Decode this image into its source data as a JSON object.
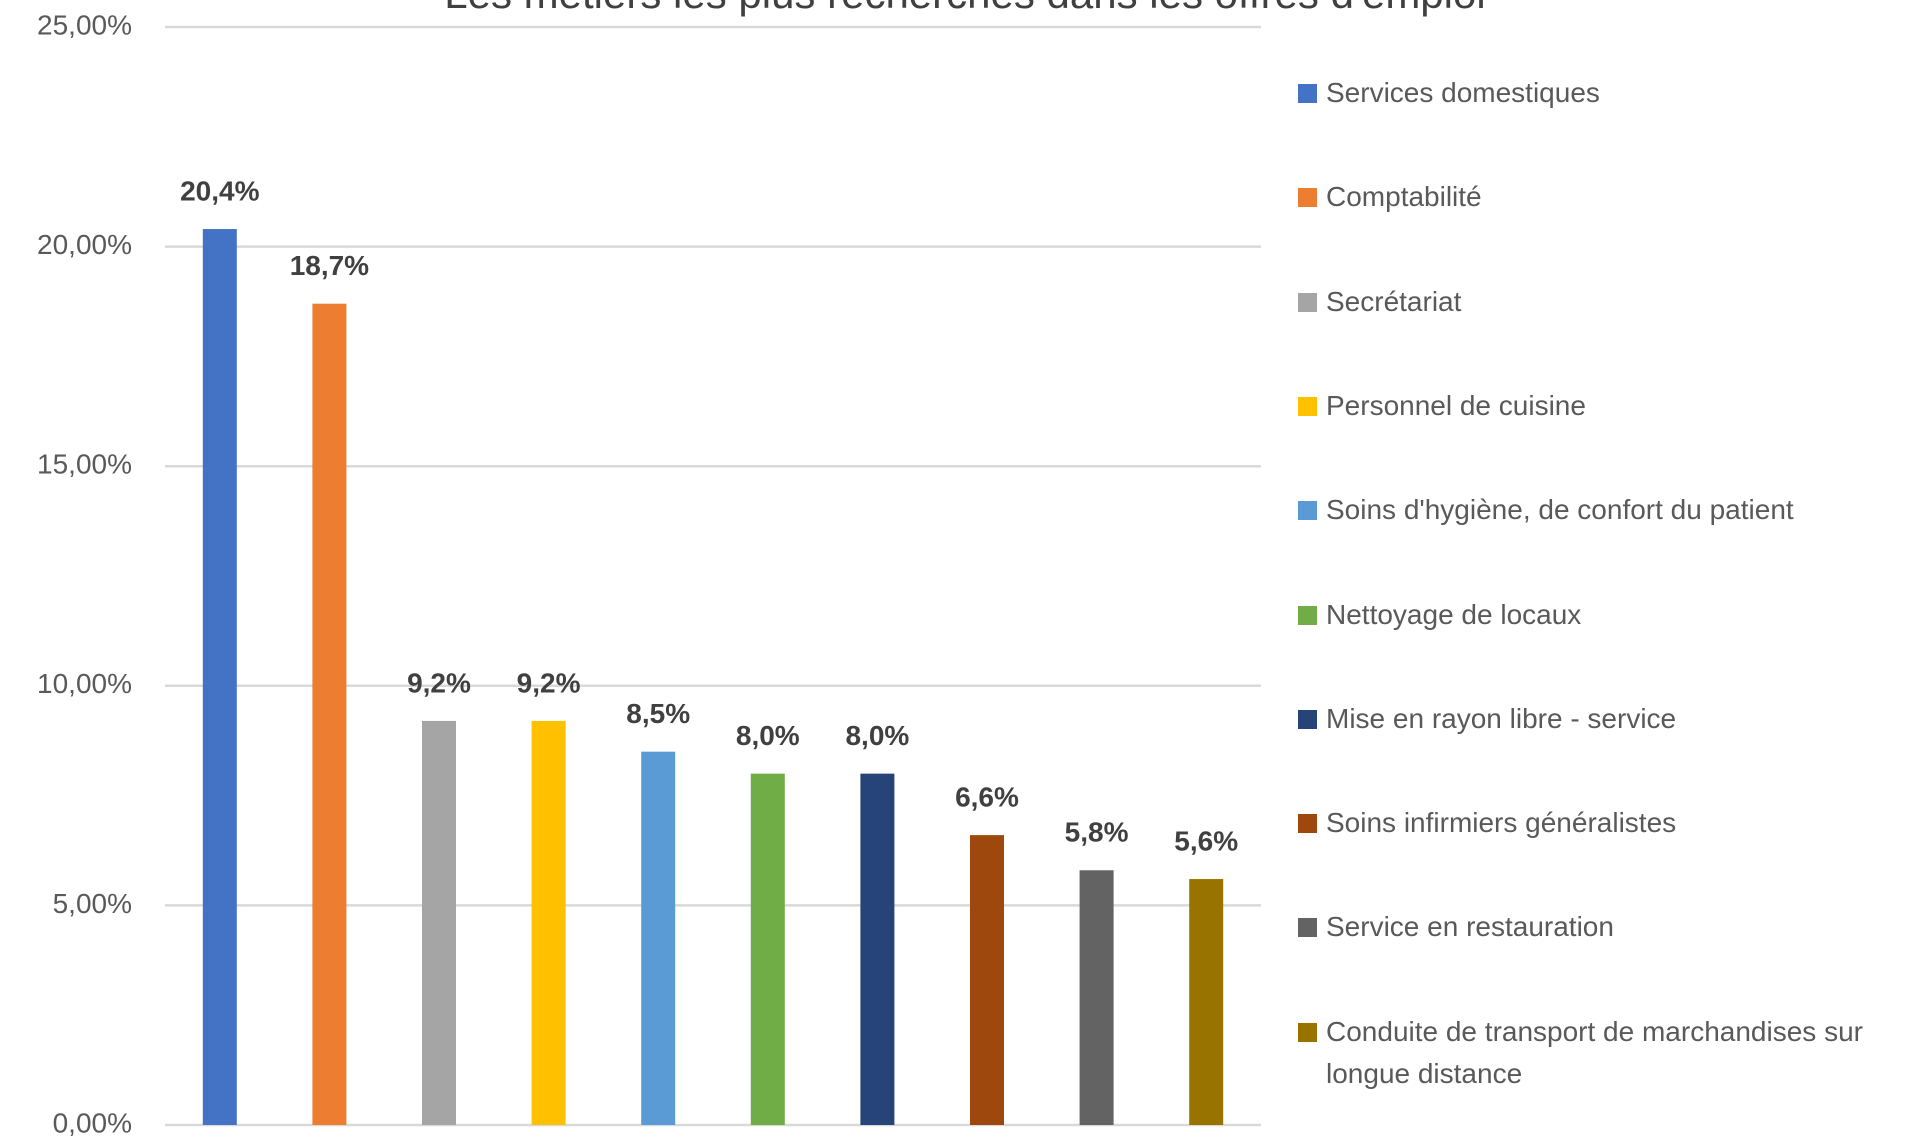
{
  "chart_data": {
    "type": "bar",
    "title": "Les métiers les plus recherchés dans les offres d'emploi",
    "categories": [
      "Services domestiques",
      "Comptabilité",
      "Secrétariat",
      "Personnel de cuisine",
      "Soins d'hygiène, de confort du patient",
      "Nettoyage de locaux",
      "Mise en rayon libre - service",
      "Soins infirmiers généralistes",
      "Service en restauration",
      "Conduite de transport de marchandises sur longue distance"
    ],
    "values": [
      20.4,
      18.7,
      9.2,
      9.2,
      8.5,
      8.0,
      8.0,
      6.6,
      5.8,
      5.6
    ],
    "value_labels": [
      "20,4%",
      "18,7%",
      "9,2%",
      "9,2%",
      "8,5%",
      "8,0%",
      "8,0%",
      "6,6%",
      "5,8%",
      "5,6%"
    ],
    "colors": [
      "#4472c4",
      "#ed7d31",
      "#a5a5a5",
      "#ffc000",
      "#5b9bd5",
      "#70ad47",
      "#264478",
      "#9e480e",
      "#636363",
      "#997300"
    ],
    "ylim": [
      0,
      25
    ],
    "yticks": [
      {
        "value": 0,
        "label": "0,00%"
      },
      {
        "value": 5,
        "label": "5,00%"
      },
      {
        "value": 10,
        "label": "10,00%"
      },
      {
        "value": 15,
        "label": "15,00%"
      },
      {
        "value": 20,
        "label": "20,00%"
      },
      {
        "value": 25,
        "label": "25,00%"
      }
    ],
    "grid": true,
    "legend": "right"
  }
}
